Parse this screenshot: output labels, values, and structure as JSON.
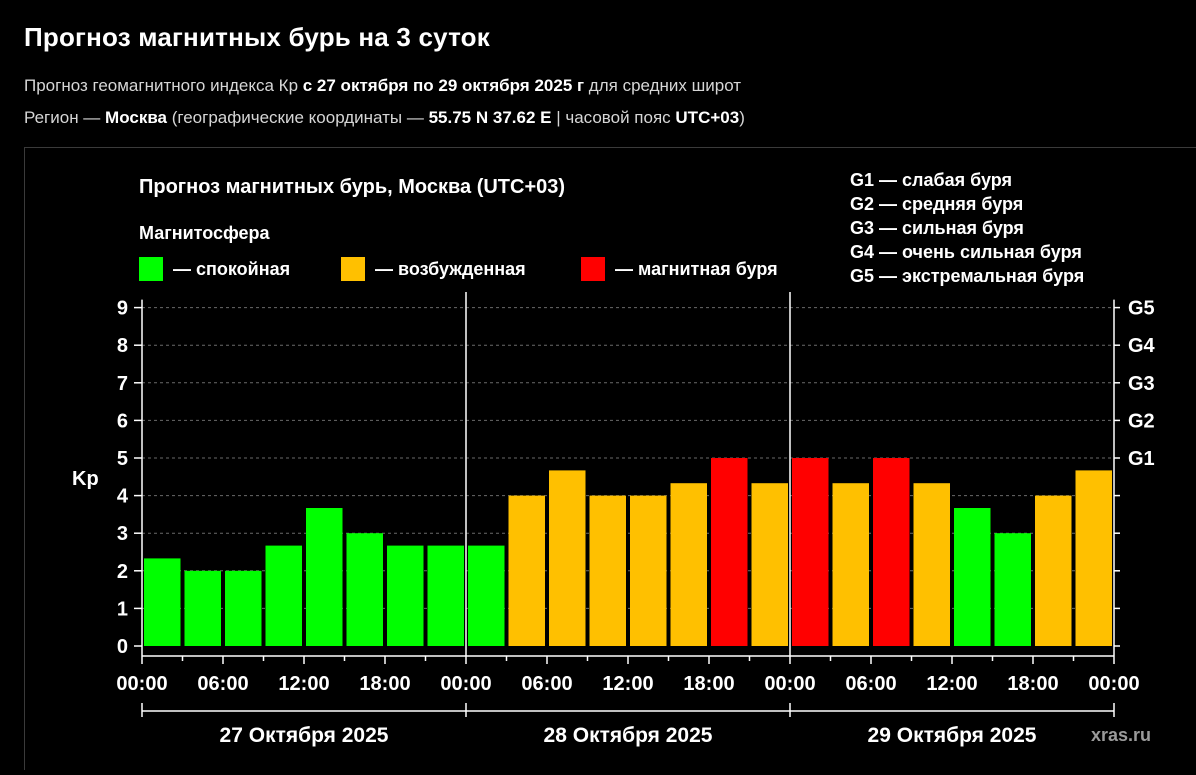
{
  "header": {
    "title": "Прогноз магнитных бурь на 3 суток",
    "line1": {
      "prefix": "Прогноз геомагнитного индекса Кр ",
      "period": "с 27 октября по 29 октября 2025 г",
      "suffix": " для средних широт"
    },
    "line2": {
      "prefix": "Регион — ",
      "city": "Москва",
      "coords_prefix": " (географические координаты — ",
      "coords": "55.75 N 37.62 E",
      "tz_prefix": " | часовой пояс ",
      "tz": "UTC+03",
      "suffix": ")"
    }
  },
  "chart_data": {
    "type": "bar",
    "title": "Прогноз магнитных бурь, Москва (UTC+03)",
    "ylabel": "Kp",
    "ylim": [
      0,
      9
    ],
    "yticks": [
      "0",
      "1",
      "2",
      "3",
      "4",
      "5",
      "6",
      "7",
      "8",
      "9"
    ],
    "g_ticks": [
      {
        "label": "G1",
        "kp": 5
      },
      {
        "label": "G2",
        "kp": 6
      },
      {
        "label": "G3",
        "kp": 7
      },
      {
        "label": "G4",
        "kp": 8
      },
      {
        "label": "G5",
        "kp": 9
      }
    ],
    "legend": {
      "title": "Магнитосфера",
      "items": [
        {
          "label": "— спокойная",
          "color": "#00ff00"
        },
        {
          "label": "— возбужденная",
          "color": "#ffc000"
        },
        {
          "label": "— магнитная буря",
          "color": "#ff0000"
        }
      ]
    },
    "g_legend": [
      "G1 — слабая буря",
      "G2 — средняя буря",
      "G3 — сильная буря",
      "G4 — очень сильная буря",
      "G5 — экстремальная буря"
    ],
    "xtick_labels": [
      "00:00",
      "06:00",
      "12:00",
      "18:00",
      "00:00",
      "06:00",
      "12:00",
      "18:00",
      "00:00",
      "06:00",
      "12:00",
      "18:00",
      "00:00"
    ],
    "days": [
      "27 Октября 2025",
      "28 Октября 2025",
      "29 Октября 2025"
    ],
    "bar_hours": [
      "00-03",
      "03-06",
      "06-09",
      "09-12",
      "12-15",
      "15-18",
      "18-21",
      "21-24"
    ],
    "values": [
      2.33,
      2.0,
      2.0,
      2.67,
      3.67,
      3.0,
      2.67,
      2.67,
      2.67,
      4.0,
      4.67,
      4.0,
      4.0,
      4.33,
      5.0,
      4.33,
      5.0,
      4.33,
      5.0,
      4.33,
      3.67,
      3.0,
      4.0,
      4.67
    ],
    "colors": {
      "quiet": "#00ff00",
      "active": "#ffc000",
      "storm": "#ff0000"
    },
    "grid": true,
    "watermark": "xras.ru"
  }
}
